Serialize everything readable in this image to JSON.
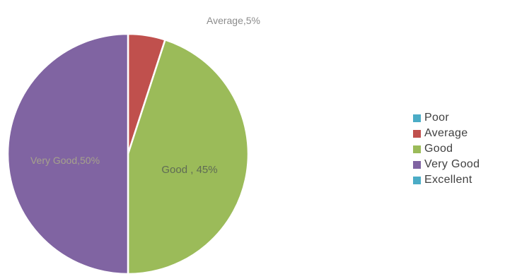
{
  "chart_data": {
    "type": "pie",
    "categories": [
      "Poor",
      "Average",
      "Good",
      "Very Good",
      "Excellent"
    ],
    "values": [
      0,
      5,
      45,
      50,
      0
    ],
    "colors": [
      "#4bacc6",
      "#c0504d",
      "#9bbb59",
      "#8064a2",
      "#4bacc6"
    ],
    "data_labels": [
      {
        "category": "Average",
        "text": "Average,5%"
      },
      {
        "category": "Good",
        "text": "Good , 45%"
      },
      {
        "category": "Very Good",
        "text": "Very Good,50%"
      }
    ],
    "legend_position": "right",
    "start_angle_deg": 0,
    "direction": "clockwise"
  }
}
